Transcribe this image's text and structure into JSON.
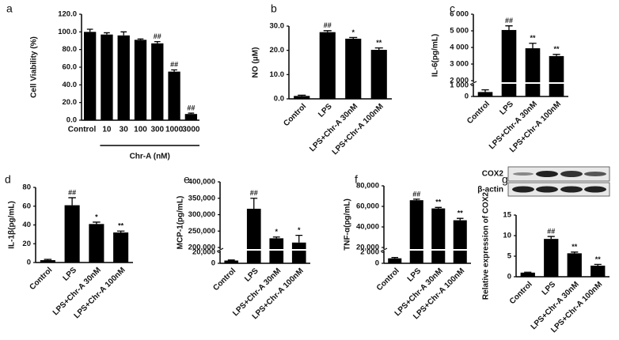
{
  "chart_data": [
    {
      "type": "bar",
      "label": "a",
      "y_label": "Cell Viability (%)",
      "xgroup_label": "Chr-A (nM)",
      "categories": [
        "Control",
        "10",
        "30",
        "100",
        "300",
        "1000",
        "3000"
      ],
      "values": [
        100,
        97,
        96,
        91,
        87,
        55,
        7
      ],
      "errors": [
        3,
        2,
        4,
        1,
        2,
        2,
        1
      ],
      "annotations": [
        null,
        null,
        null,
        null,
        "##",
        "##",
        "##"
      ],
      "color": "#000000",
      "ylim": [
        0,
        120
      ],
      "yticks": [
        {
          "value": 0,
          "label": "0.0"
        },
        {
          "value": 20,
          "label": "20.0"
        },
        {
          "value": 40,
          "label": "40.0"
        },
        {
          "value": 60,
          "label": "60.0"
        },
        {
          "value": 80,
          "label": "80.0"
        },
        {
          "value": 100,
          "label": "100.0"
        },
        {
          "value": 120,
          "label": "120.0"
        }
      ]
    },
    {
      "type": "bar",
      "label": "b",
      "y_label": "NO (μM)",
      "categories": [
        "Control",
        "LPS",
        "LPS+Chr-A 30nM",
        "LPS+Chr-A 100nM"
      ],
      "values": [
        1.2,
        27.5,
        24.8,
        20.2
      ],
      "errors": [
        0.3,
        0.6,
        0.5,
        0.8
      ],
      "annotations": [
        null,
        "##",
        "*",
        "**"
      ],
      "color": "#000000",
      "ylim": [
        0,
        30
      ],
      "yticks": [
        {
          "value": 0,
          "label": "0.0"
        },
        {
          "value": 10,
          "label": "10.0"
        },
        {
          "value": 20,
          "label": "20.0"
        },
        {
          "value": 30,
          "label": "30.0"
        }
      ]
    },
    {
      "type": "bar",
      "label": "c",
      "y_label": "IL-6(pg/mL)",
      "categories": [
        "Control",
        "LPS",
        "LPS+Chr-A 30nM",
        "LPS+Chr-A 100nM"
      ],
      "values": [
        400,
        5050,
        3950,
        3480
      ],
      "errors": [
        200,
        250,
        300,
        100
      ],
      "annotations": [
        null,
        "##",
        "**",
        "**"
      ],
      "color": "#000000",
      "ylim": [
        0,
        6000
      ],
      "ybreak": [
        1000,
        2000
      ],
      "yticks": [
        0,
        {
          "value": 1000,
          "label": "1 000"
        },
        {
          "value": 2000,
          "label": "2 000"
        },
        {
          "value": 3000,
          "label": "3 000"
        },
        {
          "value": 4000,
          "label": "4 000"
        },
        {
          "value": 5000,
          "label": "5 000"
        },
        {
          "value": 6000,
          "label": "6 000"
        }
      ]
    },
    {
      "type": "bar",
      "label": "d",
      "y_label": "IL-1β(pg/mL)",
      "categories": [
        "Control",
        "LPS",
        "LPS+Chr-A 30nM",
        "LPS+Chr-A 100nM"
      ],
      "values": [
        2.5,
        61,
        41,
        32
      ],
      "errors": [
        0.8,
        8,
        2,
        1.5
      ],
      "annotations": [
        null,
        "##",
        "*",
        "**"
      ],
      "color": "#000000",
      "ylim": [
        0,
        80
      ],
      "yticks": [
        0,
        20,
        40,
        60,
        80
      ]
    },
    {
      "type": "bar",
      "label": "e",
      "y_label": "MCP-1(pg/mL)",
      "categories": [
        "Control",
        "LPS",
        "LPS+Chr-A 30nM",
        "LPS+Chr-A 100nM"
      ],
      "values": [
        5000,
        318000,
        228000,
        215000
      ],
      "errors": [
        1000,
        32000,
        4000,
        22000
      ],
      "annotations": [
        null,
        "##",
        "*",
        "*"
      ],
      "color": "#000000",
      "ylim": [
        0,
        400000
      ],
      "ybreak": [
        20000,
        200000
      ],
      "yticks": [
        0,
        {
          "value": 20000,
          "label": "20,000"
        },
        {
          "value": 200000,
          "label": "200,000"
        },
        {
          "value": 250000,
          "label": "250,000"
        },
        {
          "value": 300000,
          "label": "300,000"
        },
        {
          "value": 350000,
          "label": "350,000"
        },
        {
          "value": 400000,
          "label": "400,000"
        }
      ]
    },
    {
      "type": "bar",
      "label": "f",
      "y_label": "TNF-α(pg/mL)",
      "categories": [
        "Control",
        "LPS",
        "LPS+Chr-A 30nM",
        "LPS+Chr-A 100nM"
      ],
      "values": [
        900,
        66000,
        58000,
        46500
      ],
      "errors": [
        150,
        1000,
        1000,
        1800
      ],
      "annotations": [
        null,
        "##",
        "**",
        "**"
      ],
      "color": "#000000",
      "ylim": [
        0,
        80000
      ],
      "ybreak": [
        2000,
        20000
      ],
      "yticks": [
        0,
        {
          "value": 2000,
          "label": "2 000"
        },
        {
          "value": 20000,
          "label": "20,000"
        },
        {
          "value": 40000,
          "label": "40,000"
        },
        {
          "value": 60000,
          "label": "60,000"
        },
        {
          "value": 80000,
          "label": "80,000"
        }
      ]
    },
    {
      "type": "bar",
      "label": "g",
      "y_label": "Relative expression of COX2",
      "blot_labels": [
        "COX2",
        "β-actin"
      ],
      "categories": [
        "Control",
        "LPS",
        "LPS+Chr-A 30nM",
        "LPS+Chr-A 100nM"
      ],
      "values": [
        1,
        9.2,
        5.7,
        2.7
      ],
      "errors": [
        0.1,
        0.6,
        0.3,
        0.3
      ],
      "annotations": [
        null,
        "##",
        "**",
        "**"
      ],
      "color": "#000000",
      "ylim": [
        0,
        15
      ],
      "yticks": [
        0,
        5,
        10,
        15
      ]
    }
  ]
}
